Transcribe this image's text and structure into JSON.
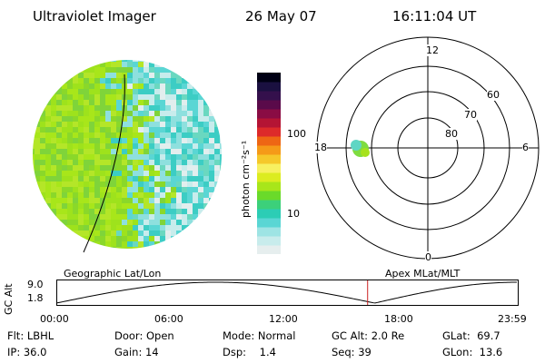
{
  "header": {
    "title": "Ultraviolet Imager",
    "date": "26 May 07",
    "time": "16:11:04 UT"
  },
  "colorbar": {
    "unit_label": "photon cm⁻²s⁻¹",
    "ticks": [
      {
        "label": "100",
        "value": 100
      },
      {
        "label": "10",
        "value": 10
      }
    ],
    "colors": [
      "#e6eeee",
      "#c8ecec",
      "#9ee4e4",
      "#5ad6d4",
      "#2ccdb5",
      "#3cd07a",
      "#6ada2a",
      "#a8e61a",
      "#dcec20",
      "#f7f060",
      "#f5c82a",
      "#f59a18",
      "#ee6614",
      "#dd2a2a",
      "#b41434",
      "#8a0c44",
      "#5a0a4a",
      "#34104c",
      "#1a1040",
      "#000014"
    ],
    "scale": "log"
  },
  "polar_plot": {
    "mlt_labels": {
      "top": "12",
      "left": "18",
      "right": "6",
      "bottom": "0"
    },
    "lat_labels": [
      "60",
      "70",
      "80"
    ],
    "spot_color": "#8ad83a"
  },
  "timeline": {
    "left_label": "Geographic Lat/Lon",
    "right_label": "Apex MLat/MLT",
    "axis_title": "GC Alt",
    "y_ticks": [
      "9.0",
      "1.8"
    ],
    "x_ticks": [
      "00:00",
      "06:00",
      "12:00",
      "18:00",
      "23:59"
    ],
    "current_time_fraction": 0.674,
    "marker_color": "#cc2222"
  },
  "info": {
    "col1": [
      {
        "key": "Flt:",
        "value": "LBHL"
      },
      {
        "key": "IP:",
        "value": "36.0"
      }
    ],
    "col2": [
      {
        "key": "Door:",
        "value": "Open"
      },
      {
        "key": "Gain:",
        "value": "14"
      }
    ],
    "col3": [
      {
        "key": "Mode:",
        "value": "Normal"
      },
      {
        "key": "Dsp:",
        "value": "1.4"
      }
    ],
    "col4": [
      {
        "key": "GC Alt:",
        "value": "2.0 Re"
      },
      {
        "key": "Seq:",
        "value": "39"
      }
    ],
    "col5": [
      {
        "key": "GLat:",
        "value": "69.7"
      },
      {
        "key": "GLon:",
        "value": "13.6"
      }
    ]
  }
}
